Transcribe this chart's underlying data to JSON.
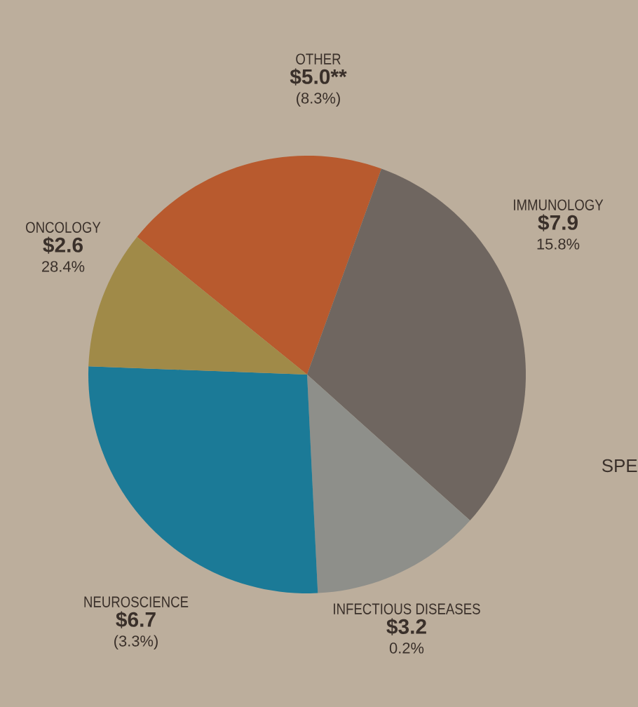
{
  "chart_data": {
    "type": "pie",
    "categories": [
      "OTHER",
      "IMMUNOLOGY",
      "INFECTIOUS DISEASES",
      "NEUROSCIENCE",
      "ONCOLOGY"
    ],
    "values": [
      5.0,
      7.9,
      3.2,
      6.7,
      2.6
    ],
    "value_labels": [
      "$5.0**",
      "$7.9",
      "$3.2",
      "$6.7",
      "$2.6"
    ],
    "colors": [
      "#b85a2e",
      "#6f6660",
      "#8e8f8a",
      "#1b7a97",
      "#a08a48"
    ],
    "annotations": [
      {
        "text": "(8.3%)",
        "x": "OTHER"
      },
      {
        "text": "15.8%",
        "x": "IMMUNOLOGY"
      },
      {
        "text": "0.2%",
        "x": "INFECTIOUS DISEASES"
      },
      {
        "text": "(3.3%)",
        "x": "NEUROSCIENCE"
      },
      {
        "text": "28.4%",
        "x": "ONCOLOGY"
      },
      "SPE"
    ]
  }
}
